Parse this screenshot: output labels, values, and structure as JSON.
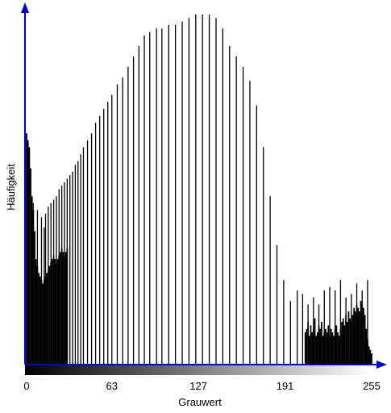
{
  "chart_data": {
    "type": "bar",
    "title": "",
    "xlabel": "Grauwert",
    "ylabel": "Häufigkeit",
    "xlim": [
      0,
      255
    ],
    "ylim": [
      0,
      1.0
    ],
    "xticks": [
      "0",
      "63",
      "127",
      "191",
      "255"
    ],
    "xtick_values": [
      0,
      63,
      127,
      191,
      255
    ],
    "grid": false,
    "legend": "none",
    "colors": {
      "axis": "#0000cc",
      "bars": "#000000",
      "gradient_start": "#000000",
      "gradient_end": "#ffffff"
    },
    "spike_bins": {
      "x": [
        5,
        8,
        11,
        13,
        14,
        16,
        18,
        20,
        22,
        24,
        26,
        28,
        30,
        32,
        34,
        36,
        38,
        40,
        42,
        45,
        48,
        51,
        54,
        57,
        60,
        63,
        67,
        71,
        75,
        79,
        83,
        87,
        91,
        96,
        100,
        105,
        110,
        115,
        120,
        125,
        130,
        135,
        140,
        145,
        150,
        155,
        160,
        165,
        170,
        175,
        180,
        185,
        190,
        195,
        200,
        204,
        208,
        212,
        216,
        220,
        224,
        228,
        232,
        236,
        240,
        244,
        248,
        252
      ],
      "values": [
        0.46,
        0.44,
        0.42,
        0.39,
        0.43,
        0.45,
        0.46,
        0.47,
        0.48,
        0.5,
        0.51,
        0.52,
        0.53,
        0.54,
        0.55,
        0.57,
        0.58,
        0.6,
        0.62,
        0.64,
        0.66,
        0.69,
        0.71,
        0.73,
        0.75,
        0.77,
        0.8,
        0.82,
        0.85,
        0.88,
        0.91,
        0.94,
        0.95,
        0.96,
        0.96,
        0.97,
        0.97,
        0.98,
        0.99,
        1.0,
        1.0,
        1.0,
        0.99,
        0.96,
        0.91,
        0.88,
        0.85,
        0.81,
        0.74,
        0.62,
        0.48,
        0.34,
        0.24,
        0.18,
        0.21,
        0.2,
        0.17,
        0.19,
        0.17,
        0.21,
        0.22,
        0.21,
        0.24,
        0.19,
        0.2,
        0.23,
        0.21,
        0.24
      ]
    },
    "dense_bins": {
      "x": [
        0,
        1,
        2,
        3,
        4,
        5,
        6,
        7,
        8,
        9,
        10,
        11,
        12,
        13,
        14,
        15,
        16,
        17,
        18,
        19,
        20,
        21,
        22,
        23,
        24,
        25,
        26,
        27,
        28,
        29,
        30,
        206,
        207,
        208,
        209,
        210,
        211,
        212,
        213,
        214,
        215,
        216,
        217,
        218,
        219,
        220,
        221,
        222,
        223,
        224,
        225,
        226,
        227,
        228,
        229,
        230,
        231,
        232,
        233,
        234,
        235,
        236,
        237,
        238,
        239,
        240,
        241,
        242,
        243,
        244,
        245,
        246,
        247,
        248,
        249,
        250,
        251,
        252,
        253,
        254,
        255
      ],
      "values": [
        0.66,
        0.64,
        0.62,
        0.56,
        0.48,
        0.44,
        0.38,
        0.3,
        0.28,
        0.26,
        0.25,
        0.24,
        0.23,
        0.24,
        0.25,
        0.26,
        0.27,
        0.28,
        0.29,
        0.3,
        0.31,
        0.3,
        0.29,
        0.3,
        0.31,
        0.32,
        0.33,
        0.32,
        0.31,
        0.32,
        0.33,
        0.09,
        0.1,
        0.12,
        0.08,
        0.11,
        0.09,
        0.1,
        0.13,
        0.08,
        0.09,
        0.11,
        0.1,
        0.12,
        0.08,
        0.09,
        0.1,
        0.09,
        0.11,
        0.08,
        0.1,
        0.09,
        0.08,
        0.1,
        0.11,
        0.09,
        0.08,
        0.1,
        0.12,
        0.13,
        0.11,
        0.14,
        0.12,
        0.15,
        0.13,
        0.12,
        0.14,
        0.16,
        0.15,
        0.17,
        0.16,
        0.15,
        0.18,
        0.17,
        0.16,
        0.14,
        0.1,
        0.07,
        0.05,
        0.04,
        0.03
      ]
    }
  }
}
